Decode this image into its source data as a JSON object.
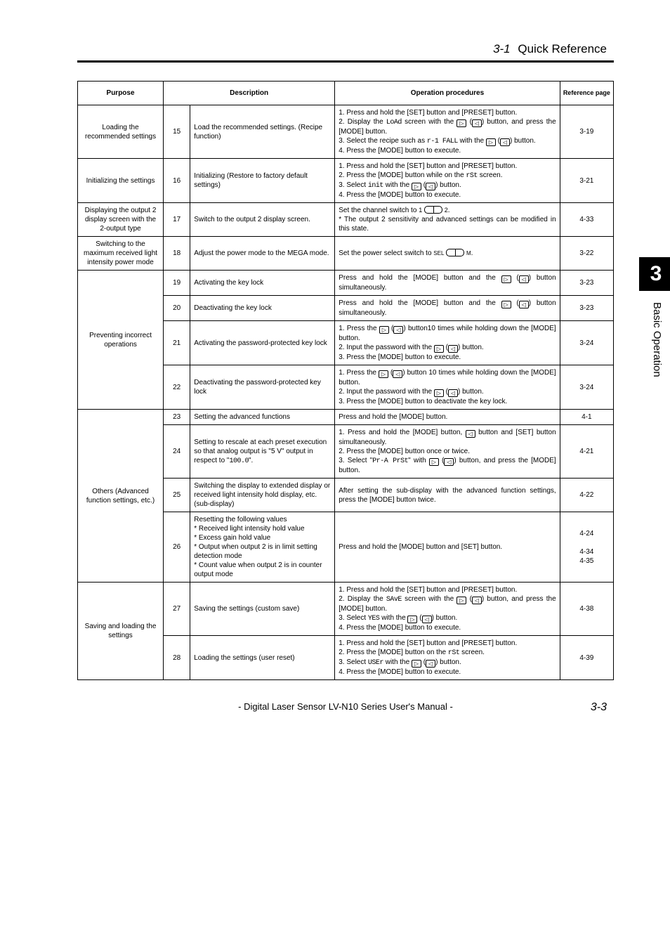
{
  "header": {
    "section_number": "3-1",
    "title": "Quick Reference"
  },
  "side_tab": {
    "number": "3",
    "label": "Basic Operation"
  },
  "table": {
    "headers": {
      "purpose": "Purpose",
      "description": "Description",
      "operation": "Operation procedures",
      "reference": "Reference page"
    },
    "col_widths": {
      "purpose": 16,
      "num": 5,
      "description": 27,
      "operation": 42,
      "reference": 10
    },
    "groups": [
      {
        "purpose": "Loading the recommended settings",
        "rows": [
          {
            "num": "15",
            "description": "Load the recommended settings. (Recipe function)",
            "operation_html": "1. Press and hold the [SET] button and [PRESET] button.<br>2. Display the <span class='segfont'>LoAd</span> screen with the <span class='icon-right' data-name='right-arrow-icon'>▷</span> (<span class='icon-left' data-name='left-arrow-icon'>◁</span>) button, and press the [MODE] button.<br>3. Select the recipe such as <span class='segfont'>r-1 FALL</span> with the <span class='icon-right' data-name='right-arrow-icon'>▷</span> (<span class='icon-left' data-name='left-arrow-icon'>◁</span>) button.<br>4. Press the [MODE] button to execute.",
            "ref": "3-19"
          }
        ]
      },
      {
        "purpose": "Initializing the settings",
        "rows": [
          {
            "num": "16",
            "description": "Initializing (Restore to factory default settings)",
            "operation_html": "1. Press and hold the [SET] button and [PRESET] button.<br>2. Press the [MODE] button while on the <span class='segfont'>rSt</span> screen.<br>3. Select <span class='segfont'>init</span> with the <span class='icon-right' data-name='right-arrow-icon'>▷</span> (<span class='icon-left' data-name='left-arrow-icon'>◁</span>) button.<br>4. Press the [MODE] button to execute.",
            "ref": "3-21"
          }
        ]
      },
      {
        "purpose": "Displaying the output 2 display screen with the 2-output type",
        "rows": [
          {
            "num": "17",
            "description": "Switch to the output 2 display screen.",
            "operation_html": "Set the channel switch to <span style='font-size:9px'>1</span> <span class='icon-switch' data-name='channel-switch-icon'></span> <span style='font-size:9px'>2</span>.<br>* The output 2 sensitivity and advanced settings can be modified in this state.",
            "ref": "4-33"
          }
        ]
      },
      {
        "purpose": "Switching to the maximum received light intensity power mode",
        "rows": [
          {
            "num": "18",
            "description": "Adjust the power mode to the MEGA mode.",
            "operation_html": "Set the power select switch to <span style='font-size:8px'>SEL</span> <span class='icon-switch' data-name='power-switch-icon'></span> <span style='font-size:8px'>M</span>.",
            "ref": "3-22"
          }
        ]
      },
      {
        "purpose": "Preventing incorrect operations",
        "rows": [
          {
            "num": "19",
            "description": "Activating the key lock",
            "operation_html": "Press and hold the [MODE] button and the <span class='icon-right' data-name='right-arrow-icon'>▷</span> (<span class='icon-left' data-name='left-arrow-icon'>◁</span>) button simultaneously.",
            "ref": "3-23"
          },
          {
            "num": "20",
            "description": "Deactivating the key lock",
            "operation_html": "Press and hold the [MODE] button and the <span class='icon-right' data-name='right-arrow-icon'>▷</span> (<span class='icon-left' data-name='left-arrow-icon'>◁</span>) button simultaneously.",
            "ref": "3-23"
          },
          {
            "num": "21",
            "description": "Activating the password-protected key lock",
            "operation_html": "1. Press the <span class='icon-right' data-name='right-arrow-icon'>▷</span> (<span class='icon-left' data-name='left-arrow-icon'>◁</span>) button10 times while holding down the [MODE] button.<br>2. Input the password with the <span class='icon-right' data-name='right-arrow-icon'>▷</span> (<span class='icon-left' data-name='left-arrow-icon'>◁</span>) button.<br>3. Press the [MODE] button to execute.",
            "ref": "3-24"
          },
          {
            "num": "22",
            "description": "Deactivating the password-protected key lock",
            "operation_html": "1. Press the <span class='icon-right' data-name='right-arrow-icon'>▷</span> (<span class='icon-left' data-name='left-arrow-icon'>◁</span>) button 10 times while holding down the [MODE] button.<br>2. Input the password with the <span class='icon-right' data-name='right-arrow-icon'>▷</span> (<span class='icon-left' data-name='left-arrow-icon'>◁</span>) button.<br>3. Press the [MODE] button to deactivate the key lock.",
            "ref": "3-24"
          }
        ]
      },
      {
        "purpose": "Others (Advanced function settings, etc.)",
        "rows": [
          {
            "num": "23",
            "description": "Setting the advanced functions",
            "operation_html": "Press and hold the [MODE] button.",
            "ref": "4-1"
          },
          {
            "num": "24",
            "description_html": "Setting to rescale at each preset execution so that analog output is \"5 V\" output in respect to \"<span class='segfont'>100.0</span>\".",
            "operation_html": "1. Press and hold the [MODE] button, <span class='icon-left' data-name='left-arrow-icon'>◁</span> button and [SET] button simultaneously.<br>2. Press the [MODE] button once or twice.<br>3. Select \"<span class='segfont'>Pr-A PrSt</span>\" with <span class='icon-right' data-name='right-arrow-icon'>▷</span> (<span class='icon-left' data-name='left-arrow-icon'>◁</span>) button, and press the [MODE] button.",
            "ref": "4-21"
          },
          {
            "num": "25",
            "description": "Switching the display to extended display or received light intensity hold display, etc. (sub-display)",
            "operation_html": "After setting the sub-display with the advanced function settings, press the [MODE] button twice.",
            "ref": "4-22"
          },
          {
            "num": "26",
            "description_html": "Resetting the following values<br>* Received light intensity hold value<br>* Excess gain hold value<br>* Output when output 2 is in limit setting detection mode<br>* Count value when output 2 is in counter output mode",
            "operation_html": "Press and hold the [MODE] button and [SET] button.",
            "ref": "4-24<br><br>4-34<br>4-35"
          }
        ]
      },
      {
        "purpose": "Saving and loading the settings",
        "rows": [
          {
            "num": "27",
            "description": "Saving the settings (custom save)",
            "operation_html": "1. Press and hold the [SET] button and [PRESET] button.<br>2. Display the <span class='segfont'>SAvE</span> screen with the <span class='icon-right' data-name='right-arrow-icon'>▷</span> (<span class='icon-left' data-name='left-arrow-icon'>◁</span>) button, and press the [MODE] button.<br>3. Select <span class='segfont'>YES</span> with the <span class='icon-right' data-name='right-arrow-icon'>▷</span> (<span class='icon-left' data-name='left-arrow-icon'>◁</span>) button.<br>4. Press the [MODE] button to execute.",
            "ref": "4-38"
          },
          {
            "num": "28",
            "description": "Loading the settings (user reset)",
            "operation_html": "1. Press and hold the [SET] button and [PRESET] button.<br>2. Press the [MODE] button on the <span class='segfont'>rSt</span> screen.<br>3. Select <span class='segfont'>USEr</span> with the <span class='icon-right' data-name='right-arrow-icon'>▷</span> (<span class='icon-left' data-name='left-arrow-icon'>◁</span>) button.<br>4. Press the [MODE] button to execute.",
            "ref": "4-39"
          }
        ]
      }
    ]
  },
  "footer": {
    "manual_title": "- Digital Laser Sensor LV-N10 Series User's Manual -",
    "page_number": "3-3"
  }
}
